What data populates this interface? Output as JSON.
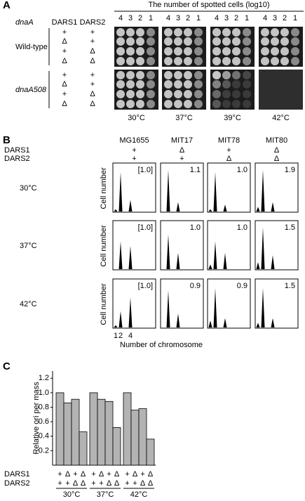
{
  "panel_a": {
    "label": "A",
    "header": "The number of spotted cells (log10)",
    "column_headers": [
      "dnaA",
      "DARS1",
      "DARS2"
    ],
    "dilutions": [
      "4",
      "3",
      "2",
      "1"
    ],
    "strains": [
      {
        "name": "Wild-type",
        "dars1": [
          "+",
          "Δ",
          "+",
          "Δ"
        ],
        "dars2": [
          "+",
          "+",
          "Δ",
          "Δ"
        ]
      },
      {
        "name": "dnaA508",
        "dars1": [
          "+",
          "Δ",
          "+",
          "Δ"
        ],
        "dars2": [
          "+",
          "+",
          "Δ",
          "Δ"
        ]
      }
    ],
    "temperatures": [
      "30°C",
      "37°C",
      "39°C",
      "42°C"
    ]
  },
  "panel_b": {
    "label": "B",
    "row_labels": [
      "DARS1",
      "DARS2"
    ],
    "strains": [
      {
        "name": "MG1655",
        "dars1": "+",
        "dars2": "+"
      },
      {
        "name": "MIT17",
        "dars1": "Δ",
        "dars2": "+"
      },
      {
        "name": "MIT78",
        "dars1": "+",
        "dars2": "Δ"
      },
      {
        "name": "MIT80",
        "dars1": "Δ",
        "dars2": "Δ"
      }
    ],
    "temperatures": [
      "30°C",
      "37°C",
      "42°C"
    ],
    "y_label": "Cell number",
    "ratios": [
      [
        "[1.0]",
        "1.1",
        "1.0",
        "1.9"
      ],
      [
        "[1.0]",
        "1.0",
        "1.0",
        "1.5"
      ],
      [
        "[1.0]",
        "0.9",
        "0.9",
        "1.5"
      ]
    ],
    "xticks": [
      1,
      2,
      4
    ],
    "x_label": "Number of chromosome"
  },
  "chart_data": {
    "type": "bar",
    "panel_label": "C",
    "y_label": "Relative ori per mass",
    "row_labels": [
      "DARS1",
      "DARS2"
    ],
    "dars1": [
      "+",
      "Δ",
      "+",
      "Δ"
    ],
    "dars2": [
      "+",
      "+",
      "Δ",
      "Δ"
    ],
    "groups": [
      {
        "name": "30°C",
        "values": [
          1.0,
          0.86,
          0.91,
          0.46
        ]
      },
      {
        "name": "37°C",
        "values": [
          1.0,
          0.91,
          0.88,
          0.52
        ]
      },
      {
        "name": "42°C",
        "values": [
          1.0,
          0.76,
          0.78,
          0.36
        ]
      }
    ],
    "color": "#b3b3b3",
    "ylim": [
      0,
      1.3
    ],
    "yticks": [
      0.2,
      0.4,
      0.6,
      0.8,
      1.0,
      1.2
    ]
  }
}
